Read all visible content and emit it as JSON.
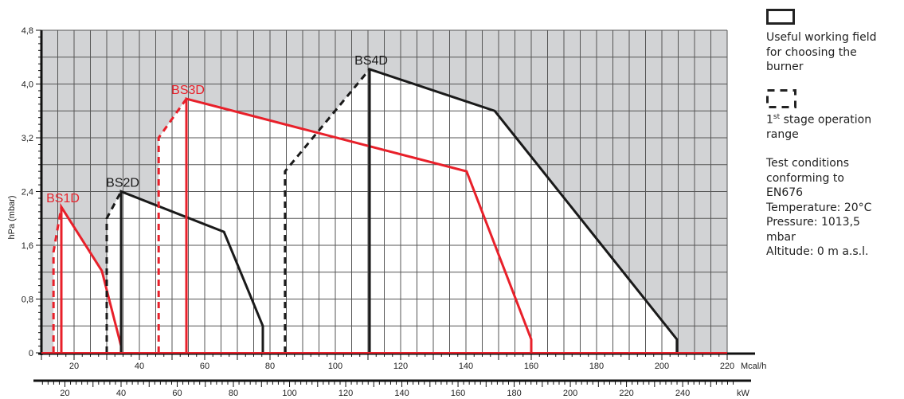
{
  "chart_data": {
    "type": "line",
    "title": "",
    "ylabel": "hPa (mbar)",
    "xlabel": "Mcal/h",
    "x2label": "kW",
    "xlim": [
      10,
      220
    ],
    "ylim": [
      0,
      4.8
    ],
    "x_ticks": [
      "20",
      "40",
      "60",
      "80",
      "100",
      "120",
      "140",
      "160",
      "180",
      "200",
      "220"
    ],
    "x2_ticks": [
      "20",
      "40",
      "60",
      "80",
      "100",
      "120",
      "140",
      "160",
      "180",
      "200",
      "220",
      "240"
    ],
    "y_ticks": [
      "0",
      "0,8",
      "1,6",
      "2,4",
      "3,2",
      "4,0",
      "4,8"
    ],
    "grid": true,
    "series": [
      {
        "name": "BS1D",
        "color": "#e8202a",
        "first_stage": [
          [
            13.7,
            0
          ],
          [
            13.7,
            1.5
          ],
          [
            16.1,
            2.17
          ]
        ],
        "working": [
          [
            16.1,
            0
          ],
          [
            16.1,
            2.17
          ],
          [
            28.5,
            1.22
          ],
          [
            34.4,
            0.1
          ],
          [
            34.4,
            0
          ]
        ]
      },
      {
        "name": "BS2D",
        "color": "#1a1a1a",
        "first_stage": [
          [
            30,
            0
          ],
          [
            30,
            2.0
          ],
          [
            34.4,
            2.4
          ]
        ],
        "working": [
          [
            34.4,
            0
          ],
          [
            34.4,
            2.4
          ],
          [
            65.9,
            1.8
          ],
          [
            77.8,
            0.4
          ],
          [
            77.8,
            0
          ]
        ]
      },
      {
        "name": "BS3D",
        "color": "#e8202a",
        "first_stage": [
          [
            45.9,
            0
          ],
          [
            45.9,
            3.2
          ],
          [
            54.4,
            3.78
          ]
        ],
        "working": [
          [
            54.4,
            0
          ],
          [
            54.4,
            3.78
          ],
          [
            140.2,
            2.7
          ],
          [
            160,
            0.2
          ],
          [
            160,
            0
          ]
        ]
      },
      {
        "name": "BS4D",
        "color": "#1a1a1a",
        "first_stage": [
          [
            84.6,
            0
          ],
          [
            84.6,
            2.7
          ],
          [
            110.5,
            4.22
          ]
        ],
        "working": [
          [
            110.5,
            0
          ],
          [
            110.5,
            4.22
          ],
          [
            148.8,
            3.6
          ],
          [
            204.6,
            0.2
          ],
          [
            204.6,
            0
          ]
        ]
      }
    ]
  },
  "legend": {
    "working_field": [
      "Useful working field",
      "for choosing the",
      "burner"
    ],
    "first_stage": {
      "num": "1",
      "sup": "st",
      "rest": " stage operation",
      "line2": "range"
    },
    "conditions": [
      "Test conditions",
      "conforming to",
      "EN676",
      "Temperature: 20°C",
      "Pressure: 1013,5",
      "mbar",
      "Altitude: 0 m a.s.l."
    ]
  }
}
